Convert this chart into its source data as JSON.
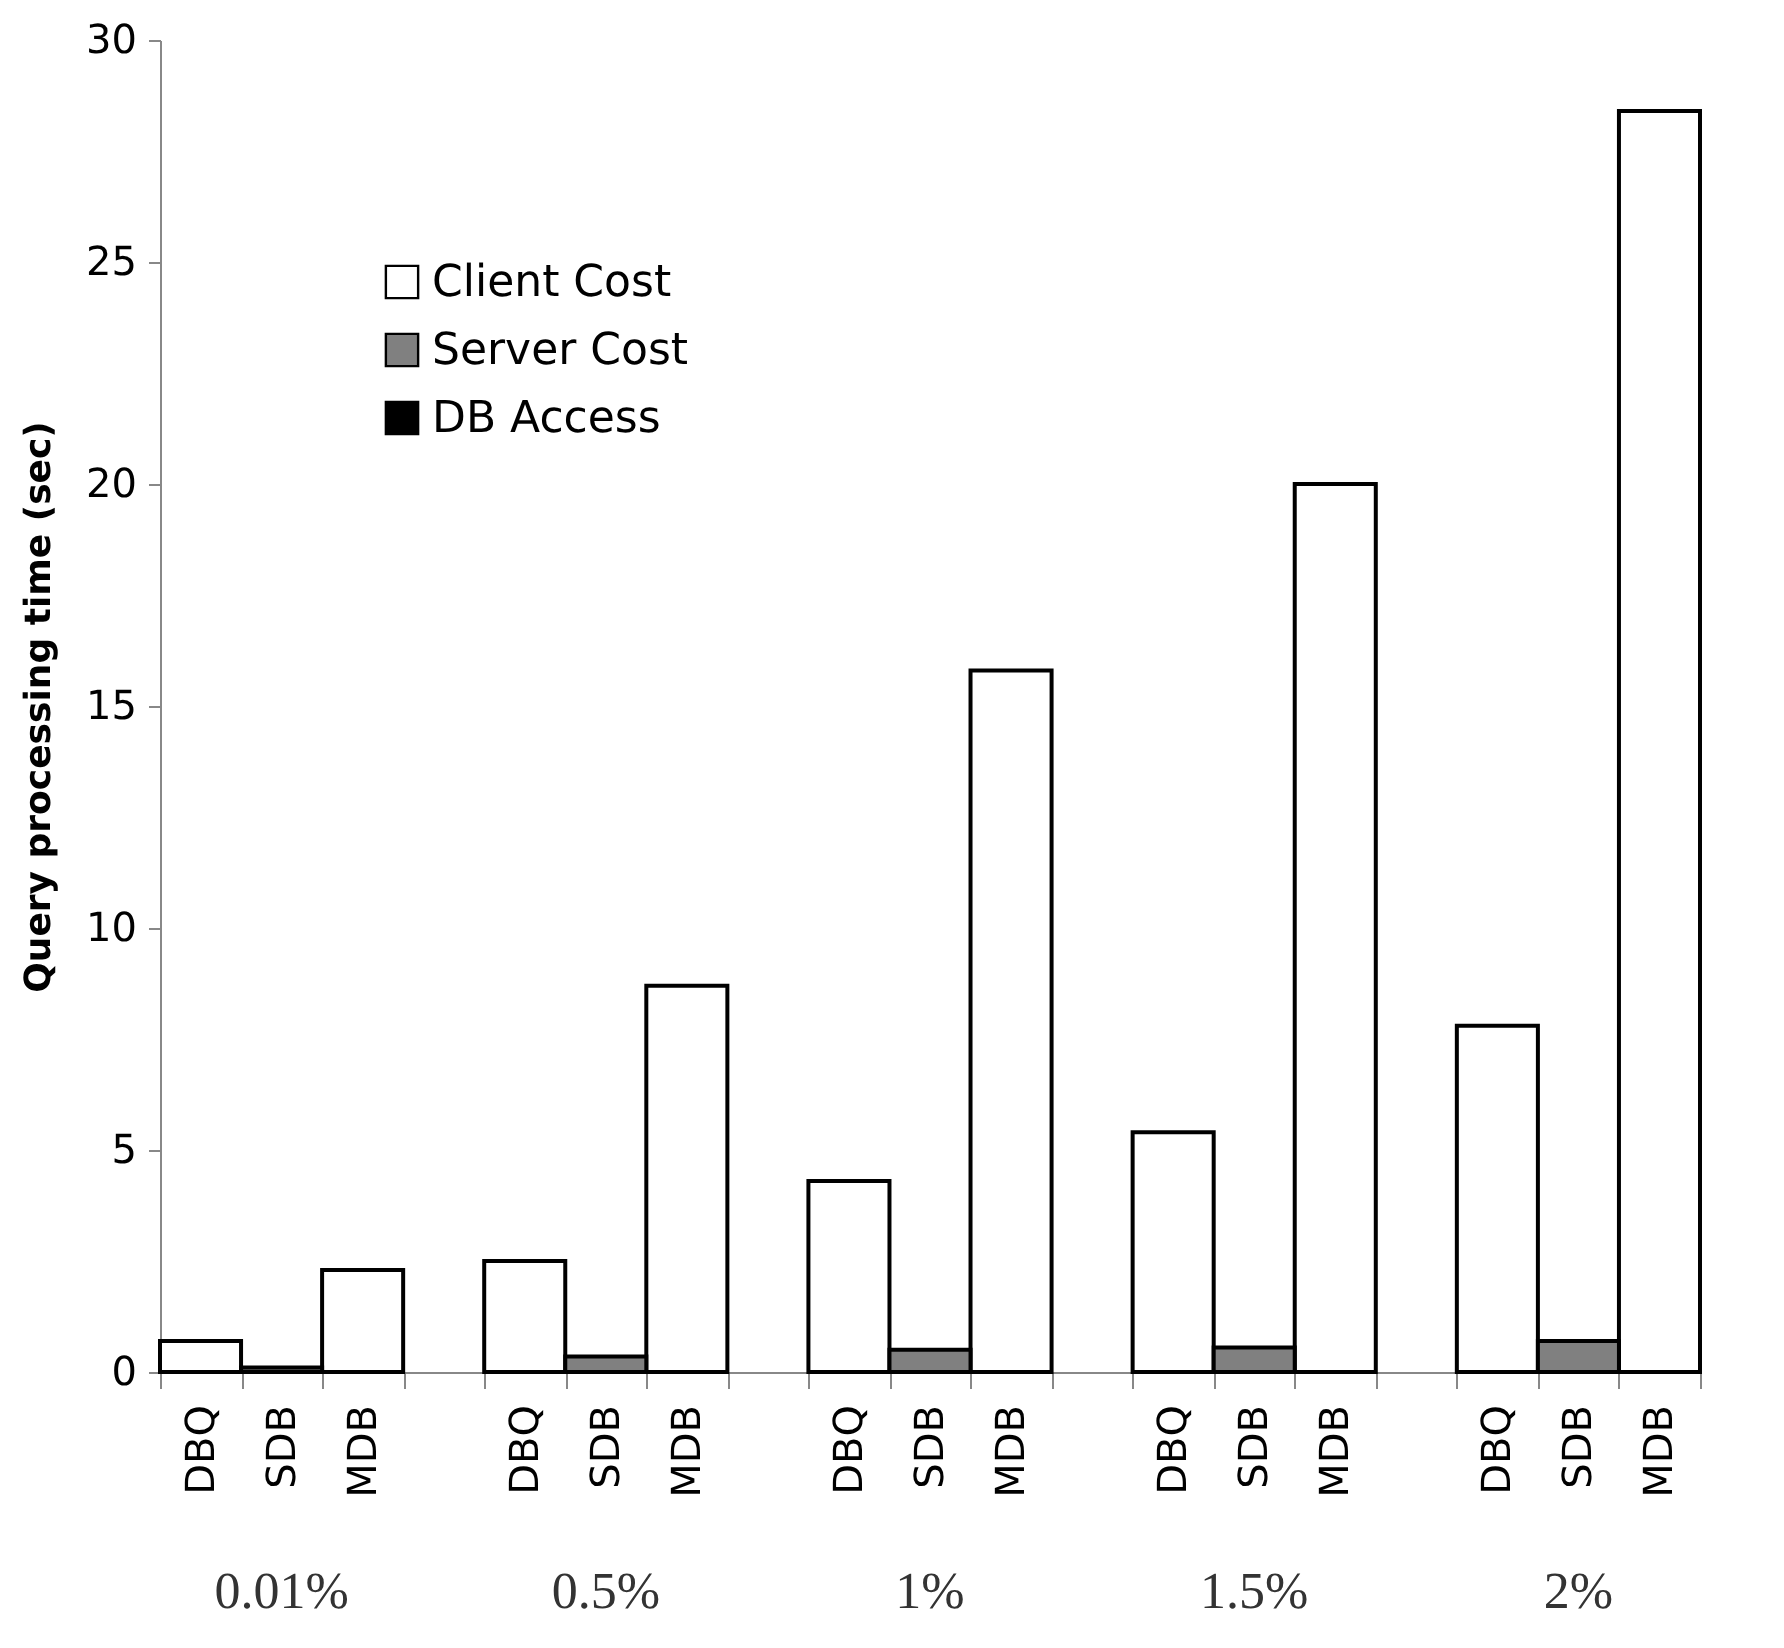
{
  "chart_data": {
    "type": "bar",
    "ylabel": "Query processing time (sec)",
    "categories": [
      "DBQ",
      "SDB",
      "MDB",
      "DBQ",
      "SDB",
      "MDB",
      "DBQ",
      "SDB",
      "MDB",
      "DBQ",
      "SDB",
      "MDB",
      "DBQ",
      "SDB",
      "MDB"
    ],
    "series": [
      {
        "name": "Client Cost",
        "color": "#ffffff",
        "values": [
          0.7,
          null,
          2.3,
          2.5,
          null,
          8.7,
          4.3,
          null,
          15.8,
          5.4,
          null,
          20.0,
          7.8,
          null,
          28.4
        ]
      },
      {
        "name": "Server Cost",
        "color": "#808080",
        "values": [
          null,
          0.1,
          null,
          null,
          0.35,
          null,
          null,
          0.5,
          null,
          null,
          0.55,
          null,
          null,
          0.7,
          null
        ]
      },
      {
        "name": "DB Access",
        "color": "#000000",
        "values": [
          null,
          null,
          null,
          null,
          null,
          null,
          null,
          null,
          null,
          null,
          null,
          null,
          null,
          null,
          null
        ]
      }
    ],
    "ylim": [
      0,
      30
    ],
    "yticks": [
      0,
      5,
      10,
      15,
      20,
      25,
      30
    ],
    "grid": false,
    "legend": "top left",
    "annotations": [
      "0.01%",
      "0.5%",
      "1%",
      "1.5%",
      "2%"
    ]
  }
}
